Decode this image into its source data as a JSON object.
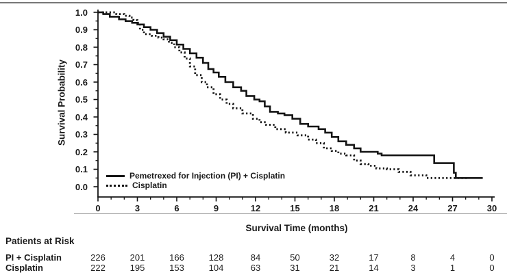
{
  "colors": {
    "line": "#141414",
    "text": "#1a1a1a",
    "artifact_line_top": "#5f5f5f",
    "artifact_line_mid": "#8a8a8a",
    "background": "#ffffff"
  },
  "legend": [
    {
      "label": "Pemetrexed for Injection (PI) + Cisplatin",
      "style": "solid"
    },
    {
      "label": "Cisplatin",
      "style": "dotted"
    }
  ],
  "risk_table": {
    "title": "Patients at Risk",
    "rows": [
      {
        "label": "PI + Cisplatin",
        "values": [
          226,
          201,
          166,
          128,
          84,
          50,
          32,
          17,
          8,
          4,
          0
        ]
      },
      {
        "label": "Cisplatin",
        "values": [
          222,
          195,
          153,
          104,
          63,
          31,
          21,
          14,
          3,
          1,
          0
        ]
      }
    ]
  },
  "chart_data": {
    "type": "line",
    "subtype": "kaplan-meier-step",
    "title": "",
    "xlabel": "Survival Time (months)",
    "ylabel": "Survival Probability",
    "xlim": [
      0,
      30
    ],
    "ylim": [
      0,
      1
    ],
    "grid": false,
    "legend_position": "inside-bottom-left",
    "x_tick_labels": [
      "0",
      "3",
      "6",
      "9",
      "12",
      "15",
      "18",
      "21",
      "24",
      "27",
      "30"
    ],
    "y_tick_labels": [
      "1.0",
      "0.9",
      "0.8",
      "0.7",
      "0.6",
      "0.5",
      "0.4",
      "0.3",
      "0.2",
      "0.1",
      "0.0"
    ],
    "x_minor_tick_interval": 1,
    "y_minor_tick_interval": 0.05,
    "series": [
      {
        "name": "Pemetrexed for Injection (PI) + Cisplatin",
        "line": "solid",
        "points": [
          [
            0,
            1.0
          ],
          [
            0.4,
            0.99
          ],
          [
            0.9,
            0.975
          ],
          [
            1.6,
            0.96
          ],
          [
            2.1,
            0.95
          ],
          [
            2.6,
            0.94
          ],
          [
            3.0,
            0.93
          ],
          [
            3.5,
            0.915
          ],
          [
            4.0,
            0.9
          ],
          [
            4.5,
            0.88
          ],
          [
            5.0,
            0.86
          ],
          [
            5.5,
            0.84
          ],
          [
            6.0,
            0.815
          ],
          [
            6.5,
            0.79
          ],
          [
            7.0,
            0.765
          ],
          [
            7.5,
            0.74
          ],
          [
            8.0,
            0.71
          ],
          [
            8.4,
            0.675
          ],
          [
            8.8,
            0.655
          ],
          [
            9.2,
            0.63
          ],
          [
            9.7,
            0.6
          ],
          [
            10.3,
            0.57
          ],
          [
            10.9,
            0.55
          ],
          [
            11.3,
            0.52
          ],
          [
            11.9,
            0.5
          ],
          [
            12.3,
            0.49
          ],
          [
            12.7,
            0.46
          ],
          [
            13.1,
            0.43
          ],
          [
            13.7,
            0.42
          ],
          [
            14.2,
            0.41
          ],
          [
            14.8,
            0.39
          ],
          [
            15.4,
            0.36
          ],
          [
            16.0,
            0.345
          ],
          [
            16.8,
            0.33
          ],
          [
            17.3,
            0.31
          ],
          [
            17.8,
            0.285
          ],
          [
            18.3,
            0.26
          ],
          [
            18.9,
            0.24
          ],
          [
            19.5,
            0.22
          ],
          [
            20.0,
            0.2
          ],
          [
            21.3,
            0.19
          ],
          [
            21.6,
            0.18
          ],
          [
            25.6,
            0.135
          ],
          [
            27.1,
            0.08
          ],
          [
            27.25,
            0.05
          ],
          [
            29.3,
            0.05
          ]
        ]
      },
      {
        "name": "Cisplatin",
        "line": "dotted",
        "points": [
          [
            0,
            1.0
          ],
          [
            1.4,
            0.99
          ],
          [
            2.0,
            0.98
          ],
          [
            2.4,
            0.97
          ],
          [
            2.7,
            0.955
          ],
          [
            3.0,
            0.94
          ],
          [
            3.2,
            0.9
          ],
          [
            3.5,
            0.875
          ],
          [
            4.1,
            0.865
          ],
          [
            4.6,
            0.855
          ],
          [
            5.0,
            0.845
          ],
          [
            5.4,
            0.825
          ],
          [
            5.8,
            0.8
          ],
          [
            6.2,
            0.77
          ],
          [
            6.6,
            0.735
          ],
          [
            7.0,
            0.69
          ],
          [
            7.4,
            0.64
          ],
          [
            7.9,
            0.6
          ],
          [
            8.3,
            0.57
          ],
          [
            8.8,
            0.53
          ],
          [
            9.3,
            0.5
          ],
          [
            9.8,
            0.475
          ],
          [
            10.3,
            0.45
          ],
          [
            11.0,
            0.42
          ],
          [
            11.8,
            0.39
          ],
          [
            12.3,
            0.37
          ],
          [
            12.8,
            0.355
          ],
          [
            13.5,
            0.33
          ],
          [
            14.3,
            0.31
          ],
          [
            15.2,
            0.295
          ],
          [
            16.0,
            0.27
          ],
          [
            16.6,
            0.25
          ],
          [
            17.2,
            0.22
          ],
          [
            17.8,
            0.205
          ],
          [
            18.3,
            0.19
          ],
          [
            18.9,
            0.18
          ],
          [
            19.5,
            0.15
          ],
          [
            20.0,
            0.13
          ],
          [
            20.6,
            0.12
          ],
          [
            21.2,
            0.105
          ],
          [
            22.0,
            0.1
          ],
          [
            22.9,
            0.085
          ],
          [
            23.8,
            0.065
          ],
          [
            25.0,
            0.05
          ],
          [
            28.1,
            0.05
          ]
        ]
      }
    ]
  }
}
